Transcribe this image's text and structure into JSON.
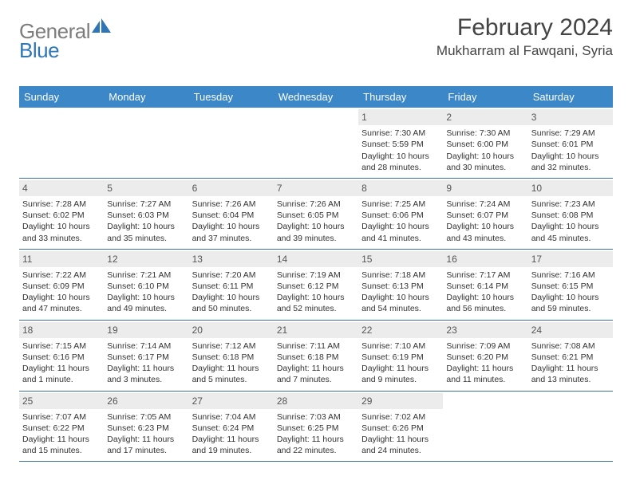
{
  "brand": {
    "part1": "General",
    "part2": "Blue"
  },
  "title": "February 2024",
  "location": "Mukharram al Fawqani, Syria",
  "colors": {
    "header_bg": "#3b87c8",
    "header_text": "#ffffff",
    "row_border": "#3b6fa0",
    "daynum_bg": "#ececec",
    "body_text": "#333333",
    "logo_gray": "#7d7d7d",
    "logo_blue": "#2f76b8"
  },
  "day_names": [
    "Sunday",
    "Monday",
    "Tuesday",
    "Wednesday",
    "Thursday",
    "Friday",
    "Saturday"
  ],
  "weeks": [
    [
      {
        "day": "",
        "sunrise": "",
        "sunset": "",
        "daylight": ""
      },
      {
        "day": "",
        "sunrise": "",
        "sunset": "",
        "daylight": ""
      },
      {
        "day": "",
        "sunrise": "",
        "sunset": "",
        "daylight": ""
      },
      {
        "day": "",
        "sunrise": "",
        "sunset": "",
        "daylight": ""
      },
      {
        "day": "1",
        "sunrise": "Sunrise: 7:30 AM",
        "sunset": "Sunset: 5:59 PM",
        "daylight": "Daylight: 10 hours and 28 minutes."
      },
      {
        "day": "2",
        "sunrise": "Sunrise: 7:30 AM",
        "sunset": "Sunset: 6:00 PM",
        "daylight": "Daylight: 10 hours and 30 minutes."
      },
      {
        "day": "3",
        "sunrise": "Sunrise: 7:29 AM",
        "sunset": "Sunset: 6:01 PM",
        "daylight": "Daylight: 10 hours and 32 minutes."
      }
    ],
    [
      {
        "day": "4",
        "sunrise": "Sunrise: 7:28 AM",
        "sunset": "Sunset: 6:02 PM",
        "daylight": "Daylight: 10 hours and 33 minutes."
      },
      {
        "day": "5",
        "sunrise": "Sunrise: 7:27 AM",
        "sunset": "Sunset: 6:03 PM",
        "daylight": "Daylight: 10 hours and 35 minutes."
      },
      {
        "day": "6",
        "sunrise": "Sunrise: 7:26 AM",
        "sunset": "Sunset: 6:04 PM",
        "daylight": "Daylight: 10 hours and 37 minutes."
      },
      {
        "day": "7",
        "sunrise": "Sunrise: 7:26 AM",
        "sunset": "Sunset: 6:05 PM",
        "daylight": "Daylight: 10 hours and 39 minutes."
      },
      {
        "day": "8",
        "sunrise": "Sunrise: 7:25 AM",
        "sunset": "Sunset: 6:06 PM",
        "daylight": "Daylight: 10 hours and 41 minutes."
      },
      {
        "day": "9",
        "sunrise": "Sunrise: 7:24 AM",
        "sunset": "Sunset: 6:07 PM",
        "daylight": "Daylight: 10 hours and 43 minutes."
      },
      {
        "day": "10",
        "sunrise": "Sunrise: 7:23 AM",
        "sunset": "Sunset: 6:08 PM",
        "daylight": "Daylight: 10 hours and 45 minutes."
      }
    ],
    [
      {
        "day": "11",
        "sunrise": "Sunrise: 7:22 AM",
        "sunset": "Sunset: 6:09 PM",
        "daylight": "Daylight: 10 hours and 47 minutes."
      },
      {
        "day": "12",
        "sunrise": "Sunrise: 7:21 AM",
        "sunset": "Sunset: 6:10 PM",
        "daylight": "Daylight: 10 hours and 49 minutes."
      },
      {
        "day": "13",
        "sunrise": "Sunrise: 7:20 AM",
        "sunset": "Sunset: 6:11 PM",
        "daylight": "Daylight: 10 hours and 50 minutes."
      },
      {
        "day": "14",
        "sunrise": "Sunrise: 7:19 AM",
        "sunset": "Sunset: 6:12 PM",
        "daylight": "Daylight: 10 hours and 52 minutes."
      },
      {
        "day": "15",
        "sunrise": "Sunrise: 7:18 AM",
        "sunset": "Sunset: 6:13 PM",
        "daylight": "Daylight: 10 hours and 54 minutes."
      },
      {
        "day": "16",
        "sunrise": "Sunrise: 7:17 AM",
        "sunset": "Sunset: 6:14 PM",
        "daylight": "Daylight: 10 hours and 56 minutes."
      },
      {
        "day": "17",
        "sunrise": "Sunrise: 7:16 AM",
        "sunset": "Sunset: 6:15 PM",
        "daylight": "Daylight: 10 hours and 59 minutes."
      }
    ],
    [
      {
        "day": "18",
        "sunrise": "Sunrise: 7:15 AM",
        "sunset": "Sunset: 6:16 PM",
        "daylight": "Daylight: 11 hours and 1 minute."
      },
      {
        "day": "19",
        "sunrise": "Sunrise: 7:14 AM",
        "sunset": "Sunset: 6:17 PM",
        "daylight": "Daylight: 11 hours and 3 minutes."
      },
      {
        "day": "20",
        "sunrise": "Sunrise: 7:12 AM",
        "sunset": "Sunset: 6:18 PM",
        "daylight": "Daylight: 11 hours and 5 minutes."
      },
      {
        "day": "21",
        "sunrise": "Sunrise: 7:11 AM",
        "sunset": "Sunset: 6:18 PM",
        "daylight": "Daylight: 11 hours and 7 minutes."
      },
      {
        "day": "22",
        "sunrise": "Sunrise: 7:10 AM",
        "sunset": "Sunset: 6:19 PM",
        "daylight": "Daylight: 11 hours and 9 minutes."
      },
      {
        "day": "23",
        "sunrise": "Sunrise: 7:09 AM",
        "sunset": "Sunset: 6:20 PM",
        "daylight": "Daylight: 11 hours and 11 minutes."
      },
      {
        "day": "24",
        "sunrise": "Sunrise: 7:08 AM",
        "sunset": "Sunset: 6:21 PM",
        "daylight": "Daylight: 11 hours and 13 minutes."
      }
    ],
    [
      {
        "day": "25",
        "sunrise": "Sunrise: 7:07 AM",
        "sunset": "Sunset: 6:22 PM",
        "daylight": "Daylight: 11 hours and 15 minutes."
      },
      {
        "day": "26",
        "sunrise": "Sunrise: 7:05 AM",
        "sunset": "Sunset: 6:23 PM",
        "daylight": "Daylight: 11 hours and 17 minutes."
      },
      {
        "day": "27",
        "sunrise": "Sunrise: 7:04 AM",
        "sunset": "Sunset: 6:24 PM",
        "daylight": "Daylight: 11 hours and 19 minutes."
      },
      {
        "day": "28",
        "sunrise": "Sunrise: 7:03 AM",
        "sunset": "Sunset: 6:25 PM",
        "daylight": "Daylight: 11 hours and 22 minutes."
      },
      {
        "day": "29",
        "sunrise": "Sunrise: 7:02 AM",
        "sunset": "Sunset: 6:26 PM",
        "daylight": "Daylight: 11 hours and 24 minutes."
      },
      {
        "day": "",
        "sunrise": "",
        "sunset": "",
        "daylight": ""
      },
      {
        "day": "",
        "sunrise": "",
        "sunset": "",
        "daylight": ""
      }
    ]
  ]
}
